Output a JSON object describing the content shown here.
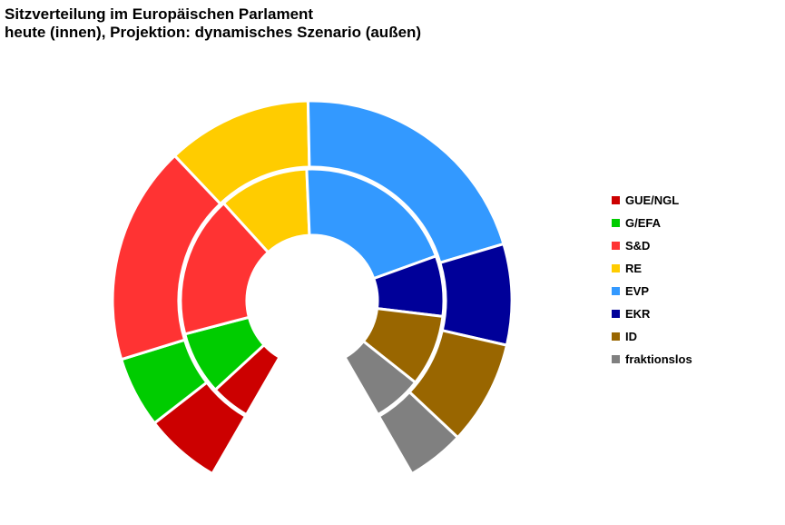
{
  "chart_data": {
    "type": "pie",
    "variant": "double-ring-parliament",
    "title": "Sitzverteilung im Europäischen Parlament",
    "subtitle": "heute (innen), Projektion: dynamisches Szenario (außen)",
    "gap_degrees": 60,
    "categories": [
      "GUE/NGL",
      "G/EFA",
      "S&D",
      "RE",
      "EVP",
      "EKR",
      "ID",
      "fraktionslos"
    ],
    "colors": [
      "#cc0000",
      "#00cc00",
      "#ff3333",
      "#ffcc00",
      "#3399ff",
      "#000099",
      "#996600",
      "#808080"
    ],
    "series": [
      {
        "ring": "inner",
        "values": [
          5.8,
          9.3,
          20.8,
          13.3,
          24.2,
          8.9,
          10.5,
          7.2
        ]
      },
      {
        "ring": "outer",
        "values": [
          7.4,
          6.9,
          21.2,
          14.1,
          24.9,
          9.8,
          10.1,
          5.6
        ]
      }
    ],
    "legend": {
      "position": "right"
    }
  }
}
